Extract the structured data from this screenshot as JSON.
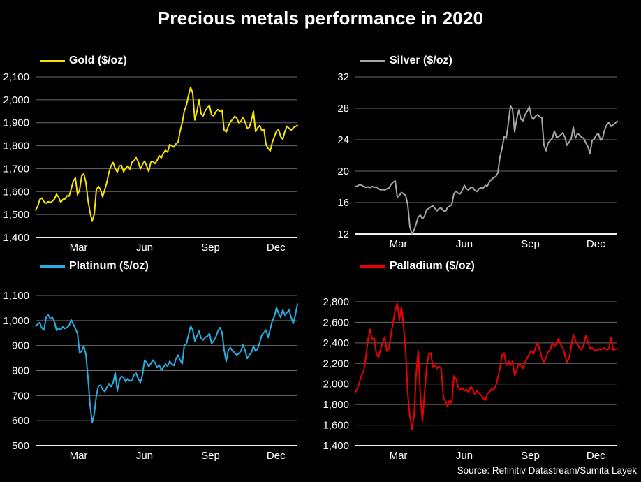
{
  "page": {
    "title": "Precious metals performance in 2020",
    "source": "Source: Refinitiv Datastream/Sumita Layek",
    "background_color": "#000000",
    "text_color": "#ffffff",
    "gridline_color": "#6b6b6b",
    "axis_color": "#f2f2f2"
  },
  "chart_data": [
    {
      "id": "gold",
      "type": "line",
      "title": "Gold ($/oz)",
      "color": "#f5e400",
      "legend_position": "top-left",
      "grid": "horizontal",
      "x_domain": [
        "Jan 2020",
        "Dec 2020"
      ],
      "x_tick_labels": [
        "Mar",
        "Jun",
        "Sep",
        "Dec"
      ],
      "ylim": [
        1400,
        2100
      ],
      "y_ticks": [
        1400,
        1500,
        1600,
        1700,
        1800,
        1900,
        2000,
        2100
      ],
      "values": [
        1520,
        1535,
        1566,
        1572,
        1556,
        1549,
        1556,
        1552,
        1558,
        1568,
        1589,
        1576,
        1553,
        1566,
        1568,
        1582,
        1580,
        1612,
        1646,
        1660,
        1586,
        1608,
        1668,
        1678,
        1640,
        1562,
        1509,
        1471,
        1502,
        1608,
        1623,
        1608,
        1577,
        1608,
        1640,
        1684,
        1712,
        1727,
        1700,
        1685,
        1712,
        1714,
        1686,
        1702,
        1712,
        1698,
        1728,
        1735,
        1748,
        1730,
        1699,
        1718,
        1733,
        1712,
        1688,
        1728,
        1732,
        1722,
        1736,
        1756,
        1747,
        1768,
        1780,
        1772,
        1805,
        1800,
        1794,
        1808,
        1815,
        1865,
        1900,
        1952,
        1976,
        2020,
        2055,
        2028,
        1912,
        1948,
        2000,
        1940,
        1930,
        1952,
        1966,
        1974,
        1934,
        1930,
        1948,
        1958,
        1948,
        1955,
        1868,
        1860,
        1886,
        1905,
        1914,
        1928,
        1920,
        1900,
        1906,
        1924,
        1903,
        1877,
        1880,
        1910,
        1950,
        1862,
        1878,
        1888,
        1866,
        1872,
        1805,
        1788,
        1777,
        1815,
        1840,
        1864,
        1870,
        1840,
        1828,
        1862,
        1885,
        1876,
        1868,
        1878,
        1884,
        1888
      ]
    },
    {
      "id": "silver",
      "type": "line",
      "title": "Silver ($/oz)",
      "color": "#a6a6a6",
      "legend_position": "top-left",
      "grid": "horizontal",
      "x_domain": [
        "Jan 2020",
        "Dec 2020"
      ],
      "x_tick_labels": [
        "Mar",
        "Jun",
        "Sep",
        "Dec"
      ],
      "ylim": [
        12,
        32
      ],
      "y_ticks": [
        12,
        16,
        20,
        24,
        28,
        32
      ],
      "values": [
        18.05,
        18.1,
        18.3,
        18.2,
        18.05,
        17.95,
        18.0,
        17.9,
        18.05,
        17.95,
        18.0,
        17.8,
        17.6,
        17.7,
        17.6,
        17.75,
        17.85,
        18.3,
        18.6,
        18.75,
        16.7,
        16.9,
        17.3,
        17.1,
        16.9,
        15.7,
        12.9,
        12.0,
        12.5,
        13.3,
        14.2,
        14.4,
        13.95,
        14.3,
        15.1,
        15.25,
        15.45,
        15.6,
        15.25,
        14.95,
        15.25,
        15.3,
        14.95,
        14.85,
        15.4,
        15.55,
        15.75,
        17.1,
        17.45,
        17.2,
        17.1,
        17.55,
        18.2,
        17.75,
        17.6,
        17.9,
        17.95,
        17.55,
        17.4,
        17.75,
        17.9,
        17.85,
        18.2,
        18.1,
        18.7,
        18.95,
        19.2,
        19.3,
        19.8,
        21.8,
        22.9,
        24.4,
        24.2,
        26.1,
        28.3,
        27.9,
        25.0,
        26.6,
        27.8,
        26.6,
        26.4,
        27.2,
        27.6,
        28.2,
        26.9,
        26.6,
        27.0,
        27.2,
        26.9,
        26.8,
        23.3,
        22.6,
        23.6,
        23.9,
        24.2,
        25.1,
        24.3,
        24.4,
        24.6,
        24.9,
        24.3,
        23.3,
        23.7,
        24.1,
        25.6,
        24.2,
        24.8,
        24.6,
        24.3,
        24.2,
        23.6,
        23.1,
        22.25,
        23.9,
        24.1,
        24.6,
        24.8,
        23.95,
        24.2,
        25.3,
        25.9,
        26.2,
        25.7,
        25.9,
        26.1,
        26.35
      ]
    },
    {
      "id": "platinum",
      "type": "line",
      "title": "Platinum ($/oz)",
      "color": "#29ace3",
      "legend_position": "top-left",
      "grid": "horizontal",
      "x_domain": [
        "Jan 2020",
        "Dec 2020"
      ],
      "x_tick_labels": [
        "Mar",
        "Jun",
        "Sep",
        "Dec"
      ],
      "ylim": [
        500,
        1100
      ],
      "y_ticks": [
        500,
        600,
        700,
        800,
        900,
        1000,
        1100
      ],
      "values": [
        978,
        985,
        992,
        970,
        962,
        1012,
        1022,
        1008,
        1012,
        995,
        960,
        970,
        963,
        975,
        968,
        972,
        980,
        1003,
        985,
        968,
        948,
        870,
        878,
        898,
        865,
        772,
        662,
        592,
        628,
        700,
        738,
        742,
        725,
        716,
        732,
        748,
        736,
        752,
        792,
        718,
        762,
        778,
        772,
        756,
        768,
        758,
        762,
        782,
        790,
        768,
        752,
        782,
        842,
        832,
        816,
        828,
        842,
        832,
        812,
        822,
        802,
        812,
        827,
        817,
        837,
        827,
        820,
        846,
        862,
        842,
        827,
        902,
        907,
        942,
        978,
        962,
        918,
        938,
        958,
        928,
        922,
        932,
        938,
        948,
        908,
        918,
        932,
        958,
        972,
        952,
        882,
        836,
        882,
        892,
        878,
        872,
        862,
        868,
        878,
        902,
        882,
        848,
        862,
        872,
        898,
        878,
        888,
        912,
        942,
        952,
        962,
        932,
        966,
        998,
        1016,
        1052,
        1028,
        1012,
        1042,
        1022,
        1032,
        1042,
        1012,
        988,
        1022,
        1066
      ]
    },
    {
      "id": "palladium",
      "type": "line",
      "title": "Palladium ($/oz)",
      "color": "#ee0000",
      "legend_position": "top-left",
      "grid": "horizontal",
      "x_domain": [
        "Jan 2020",
        "Dec 2020"
      ],
      "x_tick_labels": [
        "Mar",
        "Jun",
        "Sep",
        "Dec"
      ],
      "ylim": [
        1400,
        2800
      ],
      "y_ticks": [
        1400,
        1600,
        1800,
        2000,
        2200,
        2400,
        2600,
        2800
      ],
      "values": [
        1920,
        1958,
        2022,
        2090,
        2128,
        2262,
        2425,
        2532,
        2432,
        2448,
        2288,
        2262,
        2335,
        2405,
        2458,
        2318,
        2342,
        2478,
        2602,
        2718,
        2782,
        2622,
        2748,
        2562,
        2318,
        1902,
        1682,
        1562,
        1688,
        2102,
        2322,
        1892,
        1642,
        1908,
        2162,
        2292,
        2302,
        2162,
        2182,
        2152,
        2172,
        2142,
        1872,
        1832,
        1782,
        1842,
        1812,
        2078,
        2052,
        1972,
        1942,
        1962,
        1932,
        1948,
        1918,
        1978,
        1942,
        1902,
        1932,
        1912,
        1892,
        1862,
        1842,
        1902,
        1922,
        1952,
        1942,
        1982,
        2062,
        2152,
        2282,
        2302,
        2182,
        2222,
        2182,
        2222,
        2082,
        2132,
        2202,
        2182,
        2152,
        2212,
        2252,
        2292,
        2322,
        2292,
        2352,
        2402,
        2332,
        2252,
        2212,
        2252,
        2312,
        2332,
        2402,
        2362,
        2392,
        2442,
        2382,
        2352,
        2282,
        2212,
        2252,
        2362,
        2482,
        2422,
        2382,
        2352,
        2332,
        2382,
        2472,
        2412,
        2342,
        2352,
        2332,
        2322,
        2342,
        2332,
        2342,
        2352,
        2332,
        2342,
        2452,
        2332,
        2338,
        2342
      ]
    }
  ]
}
